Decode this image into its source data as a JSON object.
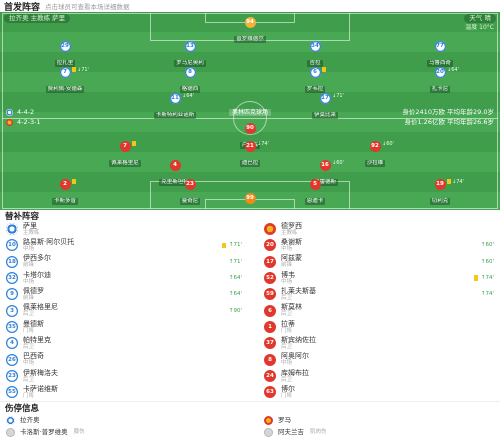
{
  "header": {
    "title": "首发阵容",
    "hint": "点击球员可查看本场详细数据"
  },
  "colors": {
    "home": "#2f7fd8",
    "away": "#e0382c",
    "gk_home": "#f0b23a",
    "gk_away": "#f08a1c",
    "card": "#f5c518",
    "pitch": "#3aa14a"
  },
  "pitch": {
    "home_coach_label": "拉齐奥  主教练 萨里",
    "weather_label": "天气 晴",
    "temperature": "温度 10°C",
    "venue": "奥林匹克球场",
    "home_formation": "4-4-2",
    "away_formation": "4-2-3-1",
    "home_stats": "身价2410万欧  平均年龄29.0岁",
    "away_stats": "身价1.26亿欧  平均年龄26.6岁"
  },
  "home": {
    "lines": [
      [
        {
          "num": "94",
          "name": "普罗维德尔"
        }
      ],
      [
        {
          "num": "29",
          "name": "拉扎里"
        },
        {
          "num": "13",
          "name": "罗马尼奥利"
        },
        {
          "num": "34",
          "name": "吉拉"
        },
        {
          "num": "77",
          "name": "马鲁西奇"
        }
      ],
      [
        {
          "num": "7",
          "name": "费利佩·安德森",
          "card": "yellow",
          "event": "↓71'"
        },
        {
          "num": "8",
          "name": "格德西"
        },
        {
          "num": "6",
          "name": "罗韦拉",
          "card": "yellow"
        },
        {
          "num": "20",
          "name": "扎卡尼",
          "event": "↓64'"
        }
      ],
      [
        {
          "num": "11",
          "name": "卡斯特利亚诺斯",
          "event": "↓64'"
        },
        {
          "num": "17",
          "name": "伊莫比莱",
          "event": "↓71'"
        }
      ]
    ]
  },
  "away": {
    "lines": [
      [
        {
          "num": "90",
          "name": "卢卡库"
        }
      ],
      [
        {
          "num": "7",
          "name": "佩莱格里尼",
          "card": "yellow"
        },
        {
          "num": "21",
          "name": "迪巴拉",
          "event": "↓74'"
        },
        {
          "num": "92",
          "name": "沙拉维",
          "event": "↓60'"
        }
      ],
      [
        {
          "num": "4",
          "name": "克里斯坦特"
        },
        {
          "num": "16",
          "name": "帕雷德斯",
          "event": "↓60'"
        }
      ],
      [
        {
          "num": "2",
          "name": "卡斯多普",
          "card": "yellow"
        },
        {
          "num": "23",
          "name": "曼奇尼"
        },
        {
          "num": "5",
          "name": "恩迪卡"
        },
        {
          "num": "19",
          "name": "切利克",
          "card": "yellow",
          "event": "↓74'"
        }
      ],
      [
        {
          "num": "99",
          "name": "斯维拉尔"
        }
      ]
    ]
  },
  "subs": {
    "title": "替补阵容",
    "home": {
      "coach": {
        "name": "萨里",
        "role": "主教练"
      },
      "players": [
        {
          "num": "10",
          "name": "路易斯·阿尔贝托",
          "pos": "中场",
          "card": "yellow",
          "event": "↑71'"
        },
        {
          "num": "18",
          "name": "伊西多尔",
          "pos": "前锋",
          "event": "↑71'"
        },
        {
          "num": "32",
          "name": "卡塔尔迪",
          "pos": "中场",
          "event": "↑64'"
        },
        {
          "num": "9",
          "name": "佩德罗",
          "pos": "前锋",
          "event": "↑64'"
        },
        {
          "num": "3",
          "name": "佩莱格里尼",
          "pos": "后卫",
          "event": "↑90'"
        },
        {
          "num": "35",
          "name": "曼德斯",
          "pos": "门将"
        },
        {
          "num": "4",
          "name": "帕特里克",
          "pos": "后卫"
        },
        {
          "num": "26",
          "name": "巴西奇",
          "pos": "中场"
        },
        {
          "num": "23",
          "name": "伊斯梅洛夫",
          "pos": "后卫"
        },
        {
          "num": "55",
          "name": "卡萨诺维斯",
          "pos": "门将"
        }
      ]
    },
    "away": {
      "coach": {
        "name": "德罗西",
        "role": "主教练"
      },
      "players": [
        {
          "num": "20",
          "name": "桑谢斯",
          "pos": "中场",
          "event": "↑60'"
        },
        {
          "num": "17",
          "name": "阿兹蒙",
          "pos": "前锋",
          "event": "↑60'"
        },
        {
          "num": "52",
          "name": "博韦",
          "pos": "中场",
          "card": "yellow",
          "event": "↑74'"
        },
        {
          "num": "59",
          "name": "扎莱夫斯基",
          "pos": "后卫",
          "event": "↑74'"
        },
        {
          "num": "6",
          "name": "斯莫林",
          "pos": "后卫"
        },
        {
          "num": "1",
          "name": "拉蒂",
          "pos": "门将"
        },
        {
          "num": "37",
          "name": "斯宾纳佐拉",
          "pos": "后卫"
        },
        {
          "num": "8",
          "name": "阿奥阿尔",
          "pos": "中场"
        },
        {
          "num": "24",
          "name": "库姆布拉",
          "pos": "后卫"
        },
        {
          "num": "63",
          "name": "博尔",
          "pos": "门将"
        }
      ]
    }
  },
  "injuries": {
    "title": "伤停信息",
    "home": {
      "team": "拉齐奥",
      "players": [
        {
          "name": "卡洛斯·普罗维奥",
          "reason": "膝伤"
        }
      ]
    },
    "away": {
      "team": "罗马",
      "players": [
        {
          "name": "阿夫兰吉",
          "reason": "肌肉伤"
        }
      ]
    }
  }
}
